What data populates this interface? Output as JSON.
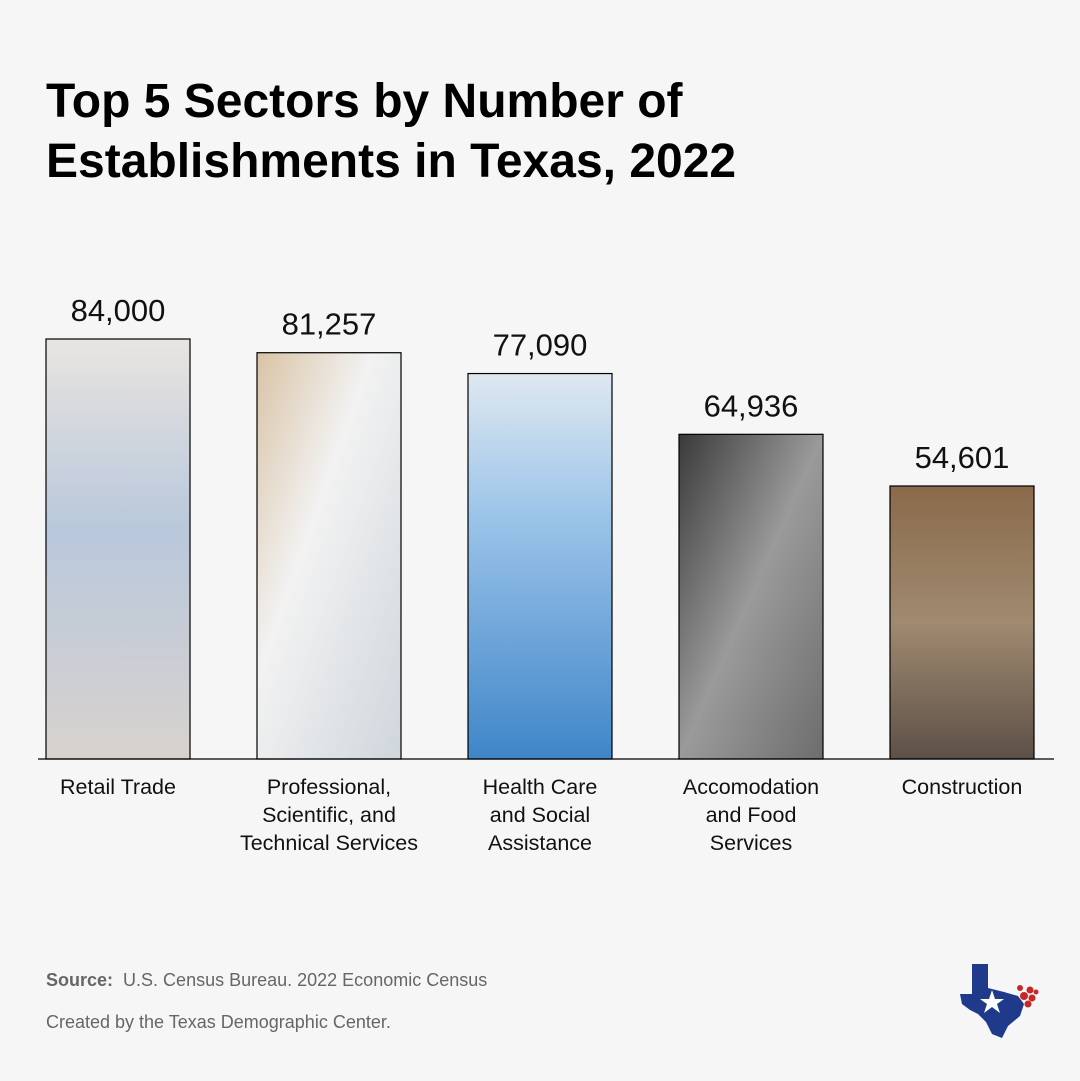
{
  "title_lines": [
    "Top 5 Sectors by Number of",
    "Establishments in Texas, 2022"
  ],
  "source_label": "Source:",
  "source_text": "U.S. Census Bureau. 2022 Economic Census",
  "credit_text": "Created by the Texas Demographic Center.",
  "chart_data": {
    "type": "bar",
    "title": "Top 5 Sectors by Number of Establishments in Texas, 2022",
    "categories": [
      [
        "Retail Trade"
      ],
      [
        "Professional,",
        "Scientific, and",
        "Technical Services"
      ],
      [
        "Health Care",
        "and Social",
        "Assistance"
      ],
      [
        "Accomodation",
        "and Food",
        "Services"
      ],
      [
        "Construction"
      ]
    ],
    "values": [
      84000,
      81257,
      77090,
      64936,
      54601
    ],
    "value_labels": [
      "84,000",
      "81,257",
      "77,090",
      "64,936",
      "54,601"
    ],
    "bar_images": [
      "retail-shopper-photo",
      "lab-scientist-photo",
      "nurse-with-tablet-photo",
      "chefs-cooking-photo",
      "construction-workers-photo"
    ],
    "grid": false,
    "legend": "none"
  },
  "colors": {
    "background": "#f6f6f6",
    "texas_blue": "#1f3a8a",
    "texas_red": "#c62828"
  }
}
